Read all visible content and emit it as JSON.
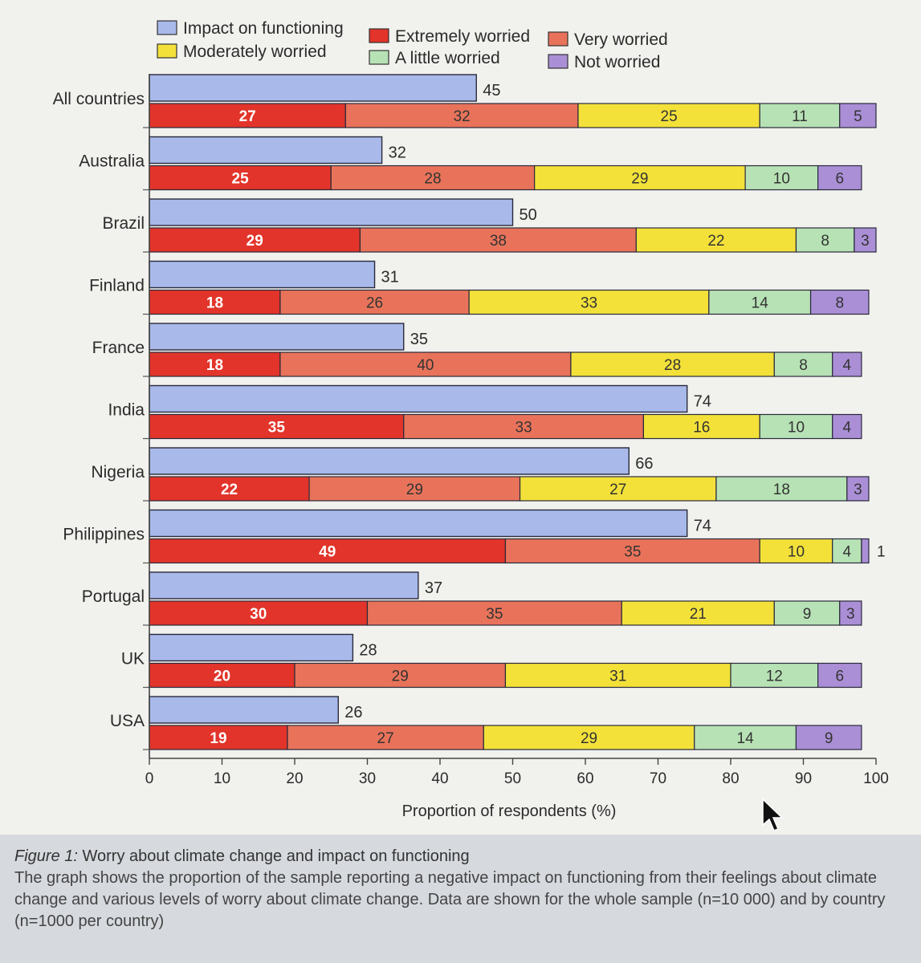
{
  "chart_data": {
    "type": "bar",
    "orientation": "horizontal",
    "xlabel": "Proportion of respondents (%)",
    "xlim": [
      0,
      100
    ],
    "xticks": [
      "0",
      "10",
      "20",
      "30",
      "40",
      "50",
      "60",
      "70",
      "80",
      "90",
      "100"
    ],
    "categories": [
      "All countries",
      "Australia",
      "Brazil",
      "Finland",
      "France",
      "India",
      "Nigeria",
      "Philippines",
      "Portugal",
      "UK",
      "USA"
    ],
    "impact_series": {
      "name": "Impact on functioning",
      "color": "#a8b9ea",
      "values": [
        45,
        32,
        50,
        31,
        35,
        74,
        66,
        74,
        37,
        28,
        26
      ]
    },
    "worry_series": [
      {
        "name": "Extremely worried",
        "color": "#e2342a",
        "values": [
          27,
          25,
          29,
          18,
          18,
          35,
          22,
          49,
          30,
          20,
          19
        ]
      },
      {
        "name": "Very worried",
        "color": "#e8735a",
        "values": [
          32,
          28,
          38,
          26,
          40,
          33,
          29,
          35,
          35,
          29,
          27
        ]
      },
      {
        "name": "Moderately worried",
        "color": "#f3e13a",
        "values": [
          25,
          29,
          22,
          33,
          28,
          16,
          27,
          10,
          21,
          31,
          29
        ]
      },
      {
        "name": "A little worried",
        "color": "#b7e2b5",
        "values": [
          11,
          10,
          8,
          14,
          8,
          10,
          18,
          4,
          9,
          12,
          14
        ]
      },
      {
        "name": "Not worried",
        "color": "#aa8fd6",
        "values": [
          5,
          6,
          3,
          8,
          4,
          4,
          3,
          1,
          3,
          6,
          9
        ]
      }
    ],
    "legend": {
      "placement": "top",
      "order": [
        "Impact on functioning",
        "Extremely worried",
        "Very worried",
        "Moderately worried",
        "A little worried",
        "Not worried"
      ]
    }
  },
  "caption": {
    "figure_number": "Figure 1:",
    "title": "Worry about climate change and impact on functioning",
    "body": "The graph shows the proportion of the sample reporting a negative impact on functioning from their feelings about climate change and various levels of worry about climate change. Data are shown for the whole sample (n=10 000) and by country (n=1000 per country)"
  },
  "cursor": {
    "icon": "arrow-cursor-icon"
  }
}
